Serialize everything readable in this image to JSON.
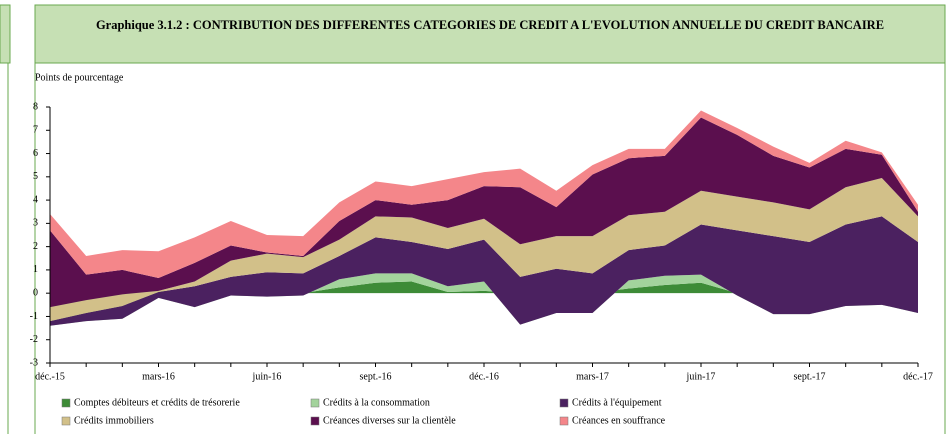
{
  "chart_data": {
    "type": "stacked_area",
    "title": "Graphique 3.1.2 : CONTRIBUTION DES DIFFERENTES CATEGORIES DE CREDIT A L'EVOLUTION ANNUELLE DU CREDIT BANCAIRE",
    "y_label": "Points de pourcentage",
    "categories": [
      "déc.-15",
      null,
      null,
      "mars-16",
      null,
      null,
      "juin-16",
      null,
      null,
      "sept.-16",
      null,
      null,
      "déc.-16",
      null,
      null,
      "mars-17",
      null,
      null,
      "juin-17",
      null,
      null,
      "sept.-17",
      null,
      null,
      "déc.-17"
    ],
    "ylim": [
      -3,
      8
    ],
    "yticks": [
      -3,
      -2,
      -1,
      0,
      1,
      2,
      3,
      4,
      5,
      6,
      7,
      8
    ],
    "series": [
      {
        "name": "Comptes débiteurs et crédits de trésorerie",
        "color": "#3d8b37",
        "values": [
          0,
          0,
          0,
          0.1,
          0,
          0,
          0,
          0,
          0.25,
          0.45,
          0.5,
          0.05,
          0.1,
          0,
          0,
          0,
          0.2,
          0.35,
          0.45,
          0,
          0,
          0,
          0,
          0,
          0
        ]
      },
      {
        "name": "Crédits à la consommation",
        "color": "#a3d39c",
        "values": [
          -1.4,
          -1.2,
          -1.1,
          -0.3,
          -0.6,
          -0.1,
          -0.15,
          -0.1,
          0.35,
          0.4,
          0.35,
          0.25,
          0.4,
          -1.35,
          -0.85,
          -0.85,
          0.35,
          0.4,
          0.35,
          -0.1,
          -0.9,
          -0.9,
          -0.55,
          -0.5,
          -0.85
        ]
      },
      {
        "name": "Crédits à l'équipement",
        "color": "#4b2160",
        "values": [
          0.2,
          0.35,
          0.55,
          0.25,
          0.9,
          0.8,
          1.05,
          0.95,
          1.0,
          1.55,
          1.35,
          1.6,
          1.8,
          2.05,
          1.9,
          1.7,
          1.3,
          1.3,
          2.15,
          2.8,
          3.35,
          3.1,
          3.5,
          3.8,
          3.05
        ]
      },
      {
        "name": "Crédits immobiliers",
        "color": "#d2c089",
        "values": [
          0.6,
          0.55,
          0.5,
          0.05,
          0.2,
          0.7,
          0.8,
          0.7,
          0.7,
          0.9,
          1.05,
          0.9,
          0.9,
          1.4,
          1.4,
          1.6,
          1.5,
          1.45,
          1.45,
          1.45,
          1.45,
          1.4,
          1.6,
          1.65,
          1.1
        ]
      },
      {
        "name": "Créances diverses sur la clientèle",
        "color": "#5b0f4e",
        "values": [
          3.3,
          1.1,
          1.05,
          0.55,
          0.8,
          0.65,
          0.05,
          0.05,
          0.8,
          0.7,
          0.55,
          1.2,
          1.4,
          2.45,
          1.25,
          2.65,
          2.45,
          2.4,
          3.15,
          2.65,
          2.0,
          1.8,
          1.65,
          1.0,
          0.2
        ]
      },
      {
        "name": "Créances en souffrance",
        "color": "#f4868a",
        "values": [
          0.7,
          0.8,
          0.85,
          1.15,
          1.1,
          1.05,
          0.75,
          0.85,
          0.8,
          0.8,
          0.8,
          0.9,
          0.6,
          0.8,
          0.7,
          0.4,
          0.4,
          0.3,
          0.3,
          0.3,
          0.4,
          0.2,
          0.35,
          0.1,
          0.3
        ]
      }
    ]
  }
}
